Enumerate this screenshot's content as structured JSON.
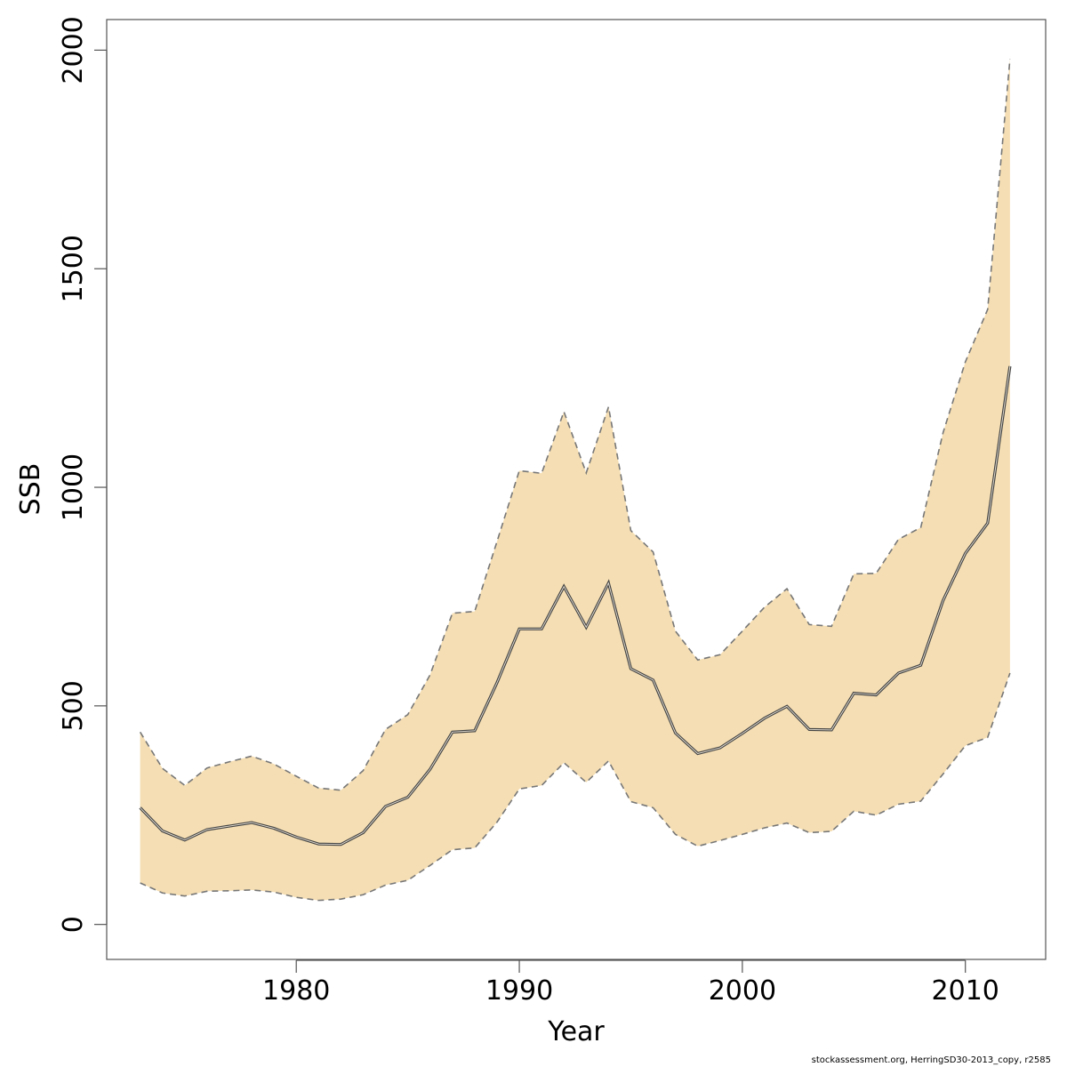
{
  "footer": {
    "source": "stockassessment.org, HerringSD30-2013_copy, r2585"
  },
  "chart_data": {
    "type": "area",
    "xlabel": "Year",
    "ylabel": "SSB",
    "xlim": [
      1971.5,
      2013.6
    ],
    "ylim": [
      -80,
      2070
    ],
    "x_ticks": [
      1980,
      1990,
      2000,
      2010
    ],
    "y_ticks": [
      0,
      500,
      1000,
      1500,
      2000
    ],
    "colors": {
      "band": "#F5DEB3",
      "estimate": "#444444",
      "bounds": "#777777",
      "axis": "#555555"
    },
    "grid": false,
    "x": [
      1973,
      1974,
      1975,
      1976,
      1977,
      1978,
      1979,
      1980,
      1981,
      1982,
      1983,
      1984,
      1985,
      1986,
      1987,
      1988,
      1989,
      1990,
      1991,
      1992,
      1993,
      1994,
      1995,
      1996,
      1997,
      1998,
      1999,
      2000,
      2001,
      2002,
      2003,
      2004,
      2005,
      2006,
      2007,
      2008,
      2009,
      2010,
      2011,
      2012
    ],
    "series": [
      {
        "role": "estimate",
        "values": [
          267,
          214,
          193,
          217,
          225,
          233,
          220,
          200,
          184,
          183,
          210,
          270,
          291,
          355,
          440,
          443,
          553,
          676,
          676,
          773,
          680,
          781,
          585,
          559,
          438,
          391,
          404,
          437,
          472,
          499,
          446,
          445,
          529,
          525,
          575,
          593,
          741,
          849,
          918,
          1277
        ]
      },
      {
        "role": "upper",
        "values": [
          440,
          357,
          318,
          358,
          372,
          385,
          367,
          339,
          312,
          307,
          352,
          446,
          480,
          571,
          712,
          716,
          876,
          1038,
          1032,
          1173,
          1033,
          1184,
          901,
          852,
          671,
          605,
          617,
          671,
          726,
          768,
          686,
          682,
          802,
          803,
          881,
          908,
          1125,
          1287,
          1407,
          1980
        ]
      },
      {
        "role": "lower",
        "values": [
          95,
          72,
          65,
          76,
          77,
          79,
          74,
          62,
          55,
          58,
          68,
          90,
          101,
          135,
          171,
          175,
          234,
          310,
          318,
          370,
          325,
          374,
          281,
          267,
          206,
          179,
          192,
          206,
          221,
          232,
          210,
          213,
          259,
          250,
          275,
          282,
          344,
          409,
          428,
          575
        ]
      }
    ]
  }
}
